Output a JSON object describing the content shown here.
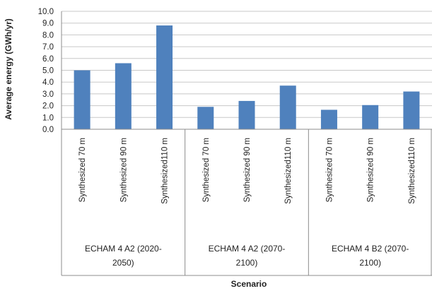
{
  "chart_data": {
    "type": "bar",
    "xlabel": "Scenario",
    "ylabel": "Average energy (GWh/yr)",
    "ylim": [
      0,
      10
    ],
    "y_ticks": [
      "0.0",
      "1.0",
      "2.0",
      "3.0",
      "4.0",
      "5.0",
      "6.0",
      "7.0",
      "8.0",
      "9.0",
      "10.0"
    ],
    "grid": true,
    "legend": "none",
    "groups": [
      {
        "label_lines": [
          "ECHAM 4 A2 (2020-",
          "2050)"
        ],
        "bars": [
          {
            "category": "Synthesized 70 m",
            "value": 5.0
          },
          {
            "category": "Synthesized 90 m",
            "value": 5.6
          },
          {
            "category": "Synthesized110 m",
            "value": 8.8
          }
        ]
      },
      {
        "label_lines": [
          "ECHAM 4 A2 (2070-",
          "2100)"
        ],
        "bars": [
          {
            "category": "Synthesized 70 m",
            "value": 1.9
          },
          {
            "category": "Synthesized 90 m",
            "value": 2.4
          },
          {
            "category": "Synthesized110 m",
            "value": 3.7
          }
        ]
      },
      {
        "label_lines": [
          "ECHAM 4 B2 (2070-",
          "2100)"
        ],
        "bars": [
          {
            "category": "Synthesized 70 m",
            "value": 1.65
          },
          {
            "category": "Synthesized 90 m",
            "value": 2.05
          },
          {
            "category": "Synthesized110 m",
            "value": 3.2
          }
        ]
      }
    ],
    "colors": {
      "bar": "#4F81BD",
      "grid": "#C8C8C8",
      "axis": "#8C8C8C"
    }
  }
}
